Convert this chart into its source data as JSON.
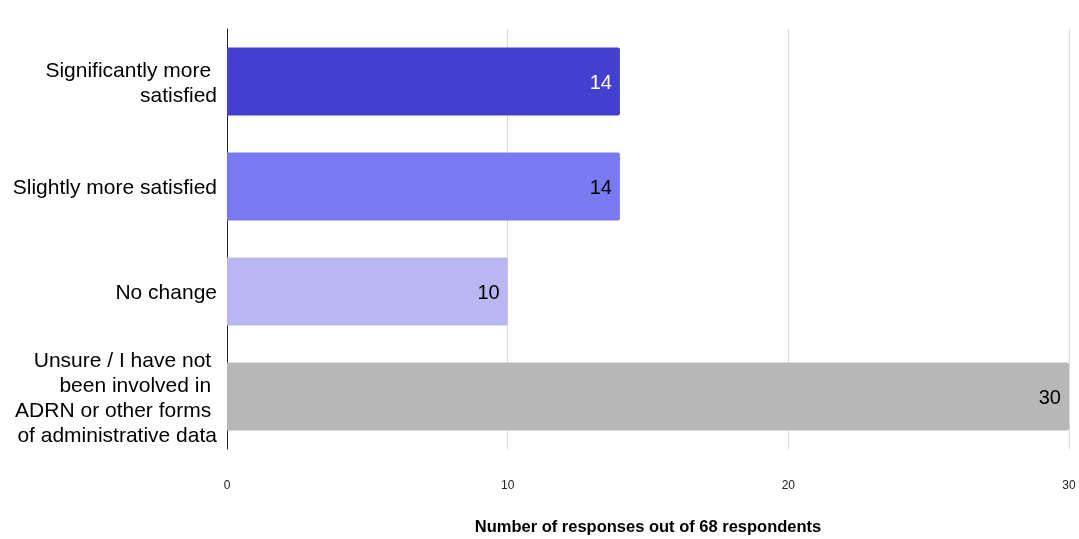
{
  "chart_data": {
    "type": "bar",
    "orientation": "horizontal",
    "categories": [
      "Significantly more satisfied",
      "Slightly more satisfied",
      "No change",
      "Unsure / I have not been involved in ADRN or other forms of administrative data"
    ],
    "values": [
      14,
      14,
      10,
      30
    ],
    "colors": [
      "#4340cf",
      "#7a7af0",
      "#b8b7f2",
      "#b7b7b7"
    ],
    "xlabel": "Number of responses out of 68 respondents",
    "xlim": [
      0,
      30
    ],
    "xticks": [
      0,
      10,
      20,
      30
    ],
    "grid": "x",
    "data_labels": true
  }
}
